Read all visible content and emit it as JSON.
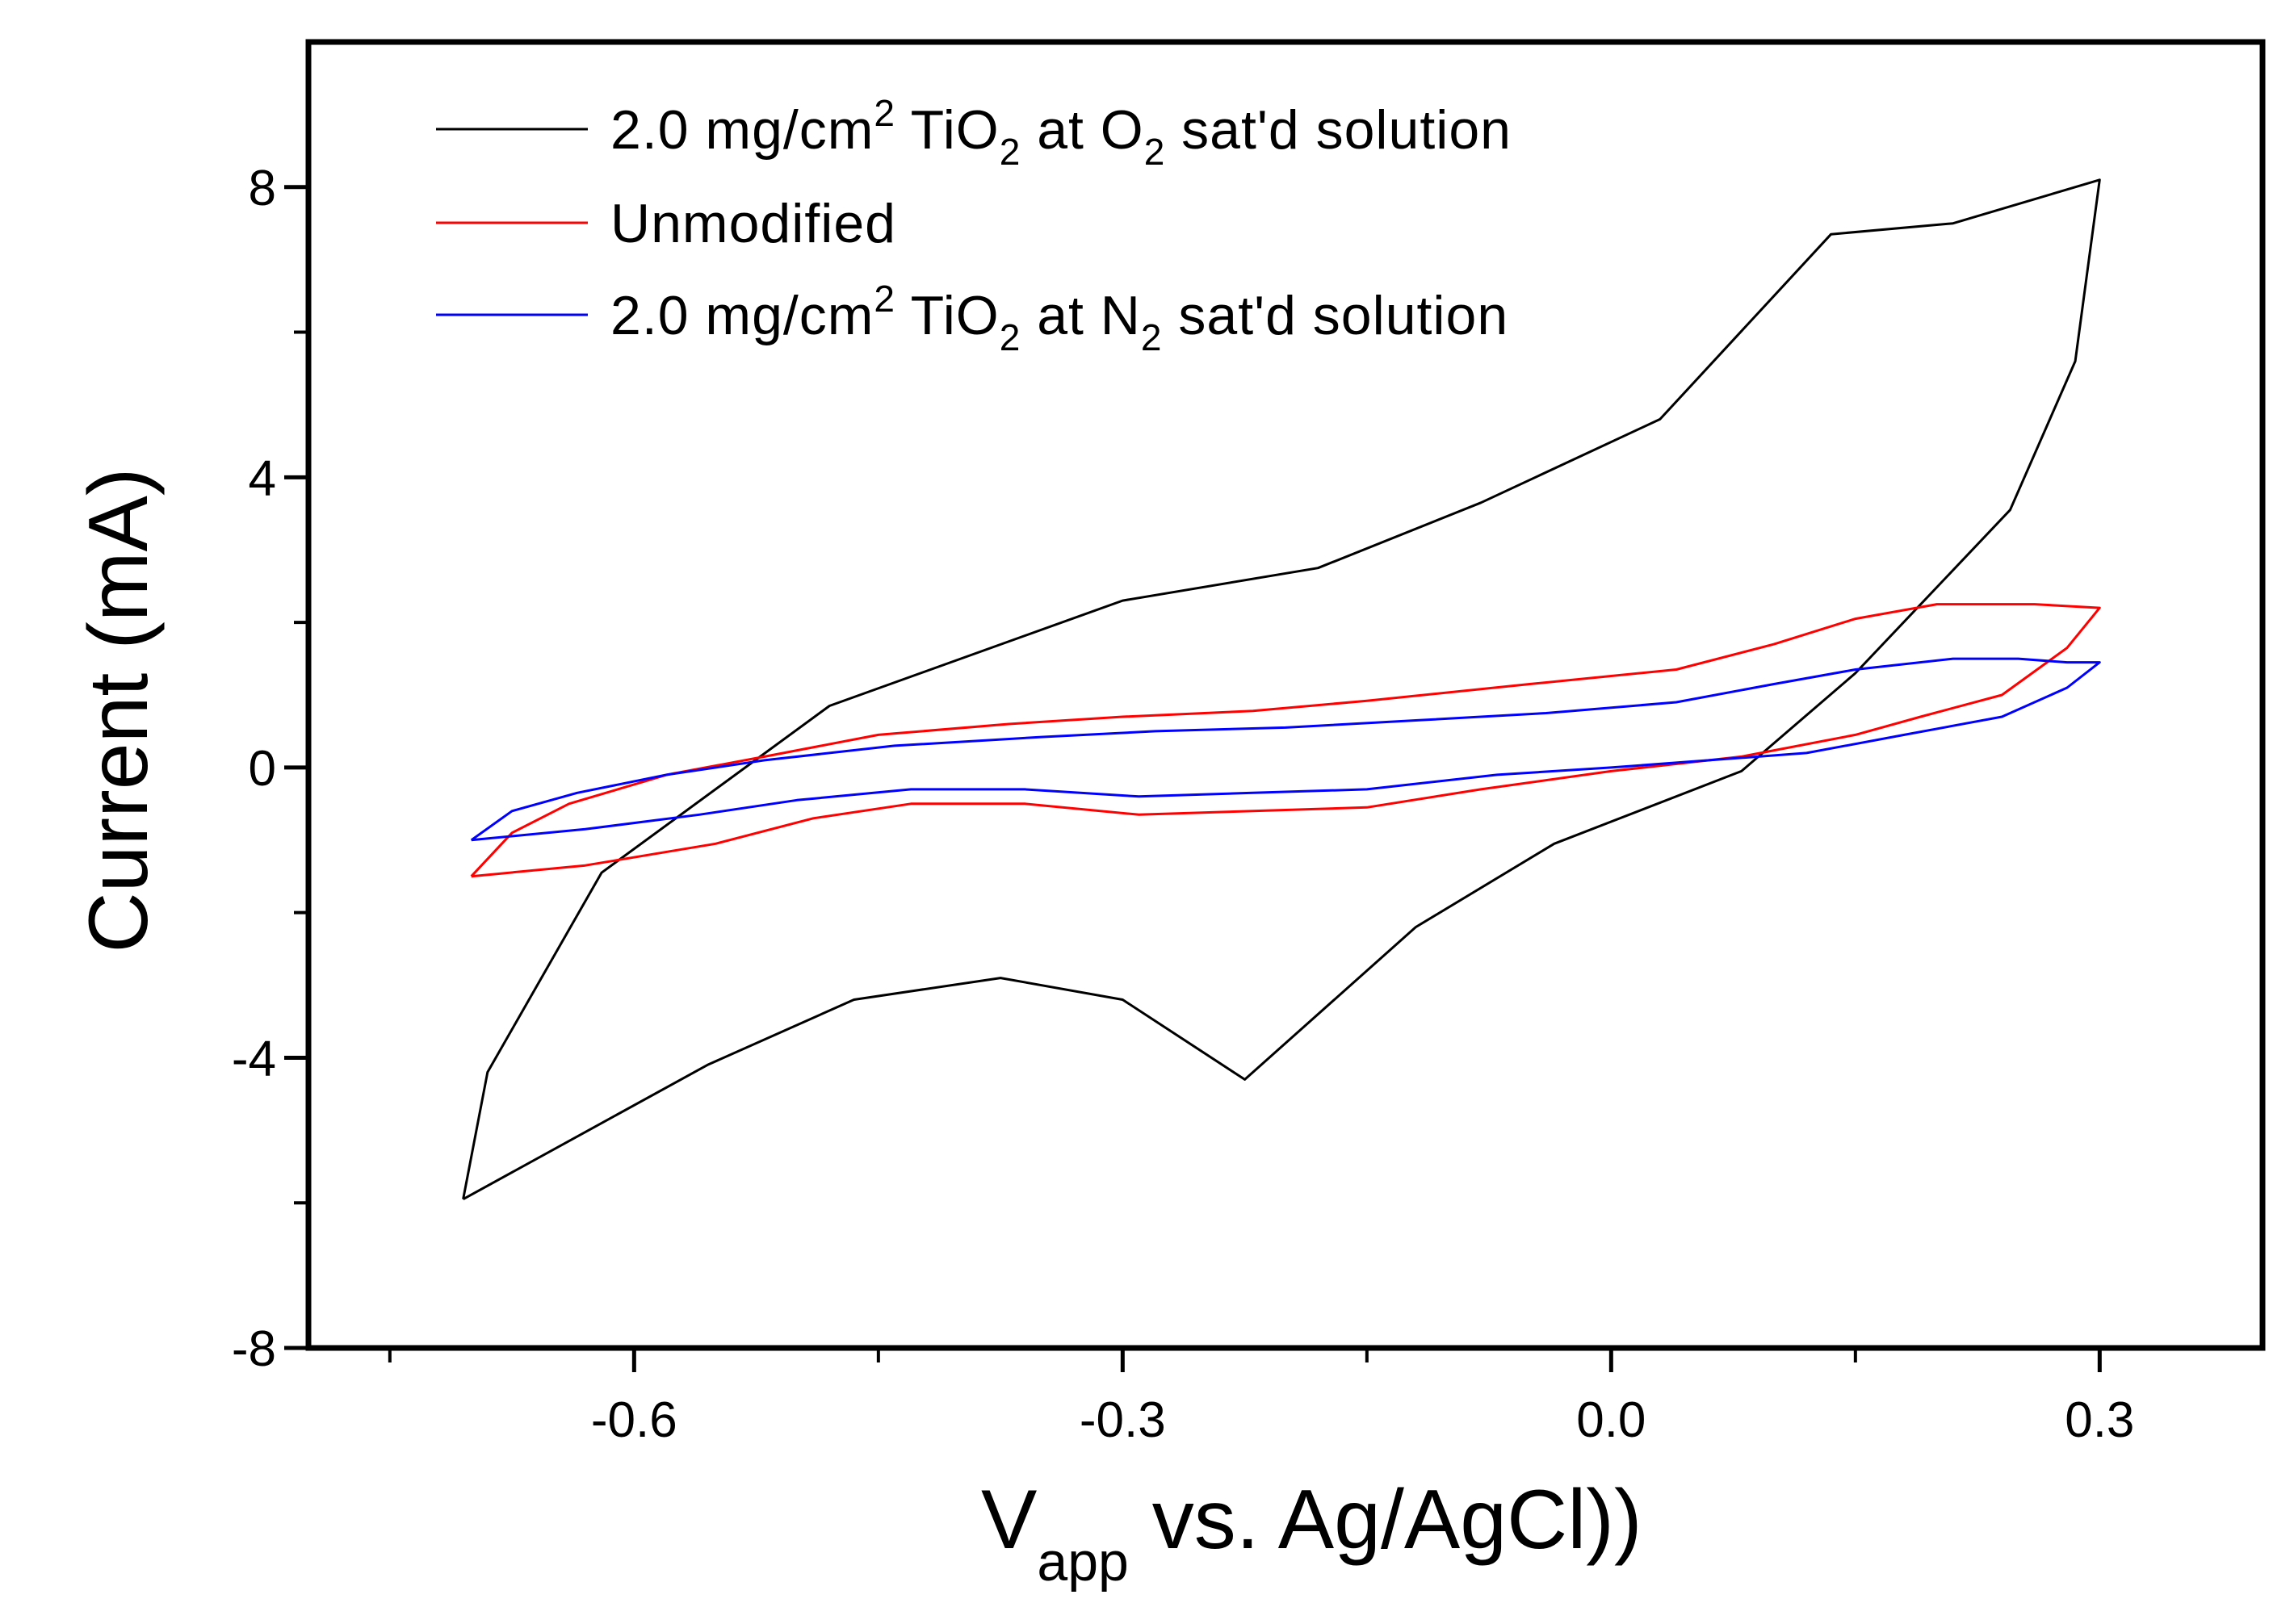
{
  "chart_data": {
    "type": "line",
    "title": "",
    "xlabel": {
      "main": "V",
      "sub": "app",
      "rest": " vs. Ag/AgCl))"
    },
    "ylabel": "Current (mA)",
    "xlim": [
      -0.8,
      0.4
    ],
    "ylim": [
      -8,
      10
    ],
    "xticks": [
      -0.6,
      -0.3,
      0.0,
      0.3
    ],
    "xtick_labels": [
      "-0.6",
      "-0.3",
      "0.0",
      "0.3"
    ],
    "xminor": [
      -0.75,
      -0.45,
      -0.15,
      0.15
    ],
    "yticks": [
      -8,
      -4,
      0,
      4,
      8
    ],
    "ytick_labels": [
      "-8",
      "-4",
      "0",
      "4",
      "8"
    ],
    "yminor": [
      -6,
      -2,
      2,
      6
    ],
    "legend_position": "top-left",
    "series": [
      {
        "name": "2.0 mg/cm2 TiO2 at O2 sat'd solution",
        "legend": {
          "a": "2.0 mg/cm",
          "sup": "2",
          "b": " TiO",
          "sub1": "2",
          "c": " at O",
          "sub2": "2",
          "d": " sat'd solution"
        },
        "color": "#000000",
        "x": [
          -0.705,
          -0.69,
          -0.62,
          -0.48,
          -0.3,
          -0.18,
          -0.08,
          0.03,
          0.135,
          0.21,
          0.3,
          0.285,
          0.245,
          0.15,
          0.08,
          -0.035,
          -0.12,
          -0.225,
          -0.3,
          -0.375,
          -0.465,
          -0.555,
          -0.705
        ],
        "y": [
          -5.95,
          -4.2,
          -1.45,
          0.85,
          2.3,
          2.75,
          3.65,
          4.8,
          7.35,
          7.5,
          8.1,
          5.6,
          3.55,
          1.3,
          -0.05,
          -1.05,
          -2.2,
          -4.3,
          -3.2,
          -2.9,
          -3.2,
          -4.1,
          -5.95
        ]
      },
      {
        "name": "Unmodified",
        "legend": {
          "a": "Unmodified",
          "sup": "",
          "b": "",
          "sub1": "",
          "c": "",
          "sub2": "",
          "d": ""
        },
        "color": "#ff0000",
        "x": [
          -0.7,
          -0.675,
          -0.64,
          -0.58,
          -0.52,
          -0.45,
          -0.37,
          -0.3,
          -0.22,
          -0.15,
          -0.05,
          0.04,
          0.1,
          0.15,
          0.2,
          0.26,
          0.3,
          0.28,
          0.24,
          0.19,
          0.15,
          0.08,
          0.0,
          -0.08,
          -0.15,
          -0.22,
          -0.29,
          -0.36,
          -0.43,
          -0.49,
          -0.55,
          -0.63,
          -0.7
        ],
        "y": [
          -1.5,
          -0.9,
          -0.5,
          -0.1,
          0.15,
          0.45,
          0.6,
          0.7,
          0.78,
          0.92,
          1.15,
          1.35,
          1.7,
          2.05,
          2.25,
          2.25,
          2.2,
          1.65,
          1.0,
          0.7,
          0.45,
          0.15,
          -0.05,
          -0.3,
          -0.55,
          -0.6,
          -0.65,
          -0.5,
          -0.5,
          -0.7,
          -1.05,
          -1.35,
          -1.5
        ]
      },
      {
        "name": "2.0 mg/cm2 TiO2 at N2 sat'd solution",
        "legend": {
          "a": "2.0 mg/cm",
          "sup": "2",
          "b": " TiO",
          "sub1": "2",
          "c": " at N",
          "sub2": "2",
          "d": " sat'd solution"
        },
        "color": "#0000ff",
        "x": [
          -0.7,
          -0.675,
          -0.635,
          -0.58,
          -0.52,
          -0.44,
          -0.35,
          -0.28,
          -0.2,
          -0.12,
          -0.04,
          0.04,
          0.1,
          0.15,
          0.21,
          0.25,
          0.28,
          0.3,
          0.28,
          0.24,
          0.18,
          0.12,
          0.06,
          0.0,
          -0.07,
          -0.15,
          -0.22,
          -0.29,
          -0.36,
          -0.43,
          -0.5,
          -0.56,
          -0.63,
          -0.7
        ],
        "y": [
          -1.0,
          -0.6,
          -0.35,
          -0.1,
          0.1,
          0.3,
          0.42,
          0.5,
          0.55,
          0.65,
          0.75,
          0.9,
          1.15,
          1.35,
          1.5,
          1.5,
          1.45,
          1.45,
          1.1,
          0.7,
          0.45,
          0.2,
          0.1,
          0.0,
          -0.1,
          -0.3,
          -0.35,
          -0.4,
          -0.3,
          -0.3,
          -0.45,
          -0.65,
          -0.85,
          -1.0
        ]
      }
    ]
  }
}
